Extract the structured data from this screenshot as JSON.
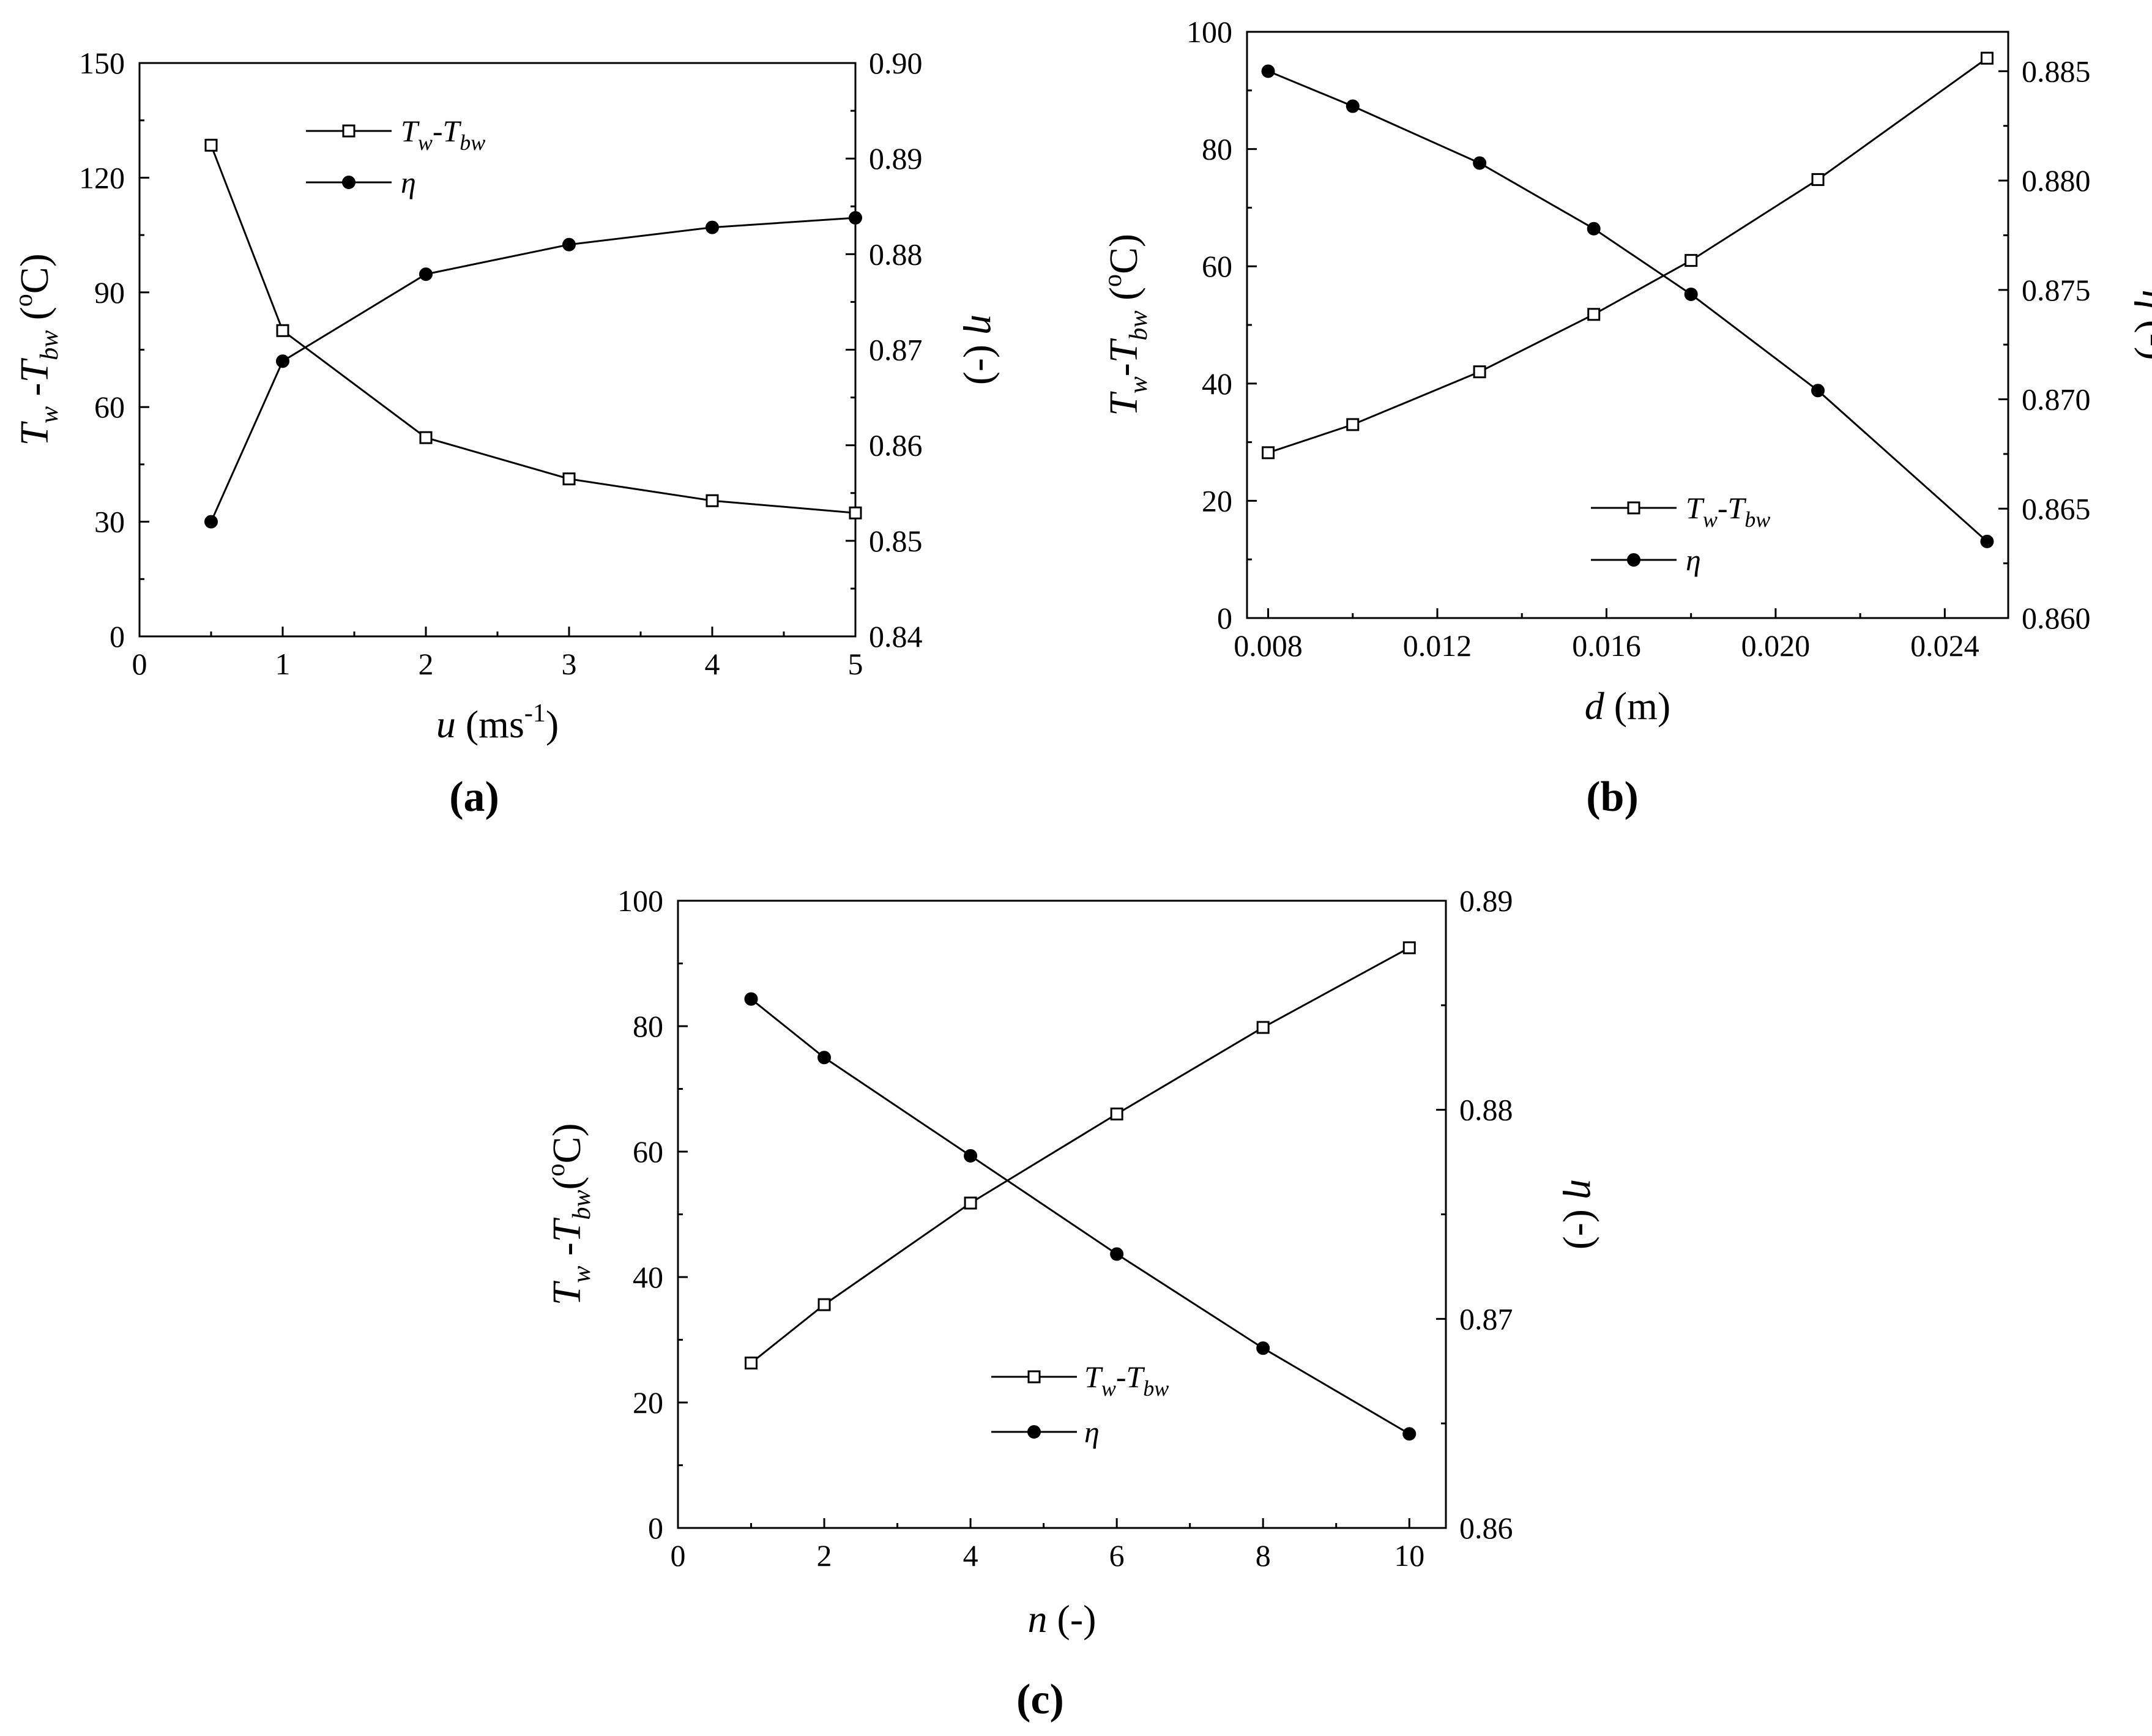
{
  "chart_data": [
    {
      "type": "line",
      "panel_label": "(a)",
      "x_var": "u",
      "x_unit": "(ms",
      "x_unit_sup": "-1",
      "x_unit_close": ")",
      "xlim": [
        0,
        5
      ],
      "xticks": [
        0,
        1,
        2,
        3,
        4,
        5
      ],
      "xtick_labels": [
        "0",
        "1",
        "2",
        "3",
        "4",
        "5"
      ],
      "ylim_left": [
        0,
        150
      ],
      "yticks_left": [
        0,
        30,
        60,
        90,
        120,
        150
      ],
      "ytick_labels_left": [
        "0",
        "30",
        "60",
        "90",
        "120",
        "150"
      ],
      "ylim_right": [
        0.84,
        0.9
      ],
      "yticks_right": [
        0.84,
        0.85,
        0.86,
        0.87,
        0.88,
        0.89,
        0.9
      ],
      "ytick_labels_right": [
        "0.84",
        "0.85",
        "0.86",
        "0.87",
        "0.88",
        "0.89",
        "0.90"
      ],
      "ylabel_left": {
        "T": "T",
        "w": "w",
        "dash": " -",
        "b": "T",
        "bw": "bw",
        "unit": " (",
        "deg": "o",
        "C": "C)"
      },
      "ylabel_right": {
        "eta": "η",
        "unit": " (-)"
      },
      "legend_position": "top-center",
      "series": [
        {
          "name": "T_w - T_bw",
          "label_parts": [
            "T",
            "w",
            "-T",
            "bw"
          ],
          "marker": "open-square",
          "axis": "left",
          "x": [
            0.5,
            1,
            2,
            3,
            4,
            5
          ],
          "values": [
            128.5,
            80,
            52,
            41.2,
            35.5,
            32.3
          ]
        },
        {
          "name": "η",
          "label_parts": [
            "η"
          ],
          "marker": "filled-circle",
          "axis": "right",
          "x": [
            0.5,
            1,
            2,
            3,
            4,
            5
          ],
          "values": [
            0.852,
            0.8688,
            0.8779,
            0.881,
            0.8828,
            0.8838
          ]
        }
      ]
    },
    {
      "type": "line",
      "panel_label": "(b)",
      "x_var": "d",
      "x_unit": "(m)",
      "x_unit_sup": "",
      "x_unit_close": "",
      "xlim": [
        0.0075,
        0.0255
      ],
      "xticks": [
        0.008,
        0.012,
        0.016,
        0.02,
        0.024
      ],
      "xtick_labels": [
        "0.008",
        "0.012",
        "0.016",
        "0.020",
        "0.024"
      ],
      "ylim_left": [
        0,
        100
      ],
      "yticks_left": [
        0,
        20,
        40,
        60,
        80,
        100
      ],
      "ytick_labels_left": [
        "0",
        "20",
        "40",
        "60",
        "80",
        "100"
      ],
      "ylim_right": [
        0.86,
        0.8868
      ],
      "yticks_right": [
        0.86,
        0.865,
        0.87,
        0.875,
        0.88,
        0.885
      ],
      "ytick_labels_right": [
        "0.860",
        "0.865",
        "0.870",
        "0.875",
        "0.880",
        "0.885"
      ],
      "ylabel_left": {
        "T": "T",
        "w": "w",
        "dash": "-",
        "b": "T",
        "bw": "bw",
        "unit": "  (",
        "deg": "o",
        "C": "C)"
      },
      "ylabel_right": {
        "eta": "η",
        "unit": " (-)"
      },
      "legend_position": "bottom-center",
      "series": [
        {
          "name": "T_w - T_bw",
          "label_parts": [
            "T",
            "w",
            "-T",
            "bw"
          ],
          "marker": "open-square",
          "axis": "left",
          "x": [
            0.008,
            0.01,
            0.013,
            0.0157,
            0.018,
            0.021,
            0.025
          ],
          "values": [
            28.2,
            33,
            42,
            51.8,
            61,
            74.8,
            95.5
          ]
        },
        {
          "name": "η",
          "label_parts": [
            "η"
          ],
          "marker": "filled-circle",
          "axis": "right",
          "x": [
            0.008,
            0.01,
            0.013,
            0.0157,
            0.018,
            0.021,
            0.025
          ],
          "values": [
            0.885,
            0.8834,
            0.8808,
            0.8778,
            0.8748,
            0.8704,
            0.8635
          ]
        }
      ]
    },
    {
      "type": "line",
      "panel_label": "(c)",
      "x_var": "n",
      "x_unit": "(-)",
      "x_unit_sup": "",
      "x_unit_close": "",
      "xlim": [
        0,
        10.5
      ],
      "xticks": [
        0,
        2,
        4,
        6,
        8,
        10
      ],
      "xtick_labels": [
        "0",
        "2",
        "4",
        "6",
        "8",
        "10"
      ],
      "ylim_left": [
        0,
        100
      ],
      "yticks_left": [
        0,
        20,
        40,
        60,
        80,
        100
      ],
      "ytick_labels_left": [
        "0",
        "20",
        "40",
        "60",
        "80",
        "100"
      ],
      "ylim_right": [
        0.86,
        0.89
      ],
      "yticks_right": [
        0.86,
        0.87,
        0.88,
        0.89
      ],
      "ytick_labels_right": [
        "0.86",
        "0.87",
        "0.88",
        "0.89"
      ],
      "ylabel_left": {
        "T": "T",
        "w": "w",
        "dash": " -",
        "b": "T",
        "bw": "bw",
        "unit": "(",
        "deg": "o",
        "C": "C)"
      },
      "ylabel_right": {
        "eta": "η",
        "unit": " (-)"
      },
      "legend_position": "bottom-center",
      "series": [
        {
          "name": "T_w - T_bw",
          "label_parts": [
            "T",
            "w",
            "-T",
            "bw"
          ],
          "marker": "open-square",
          "axis": "left",
          "x": [
            1,
            2,
            4,
            6,
            8,
            10
          ],
          "values": [
            26.3,
            35.6,
            51.8,
            66,
            79.8,
            92.5
          ]
        },
        {
          "name": "η",
          "label_parts": [
            "η"
          ],
          "marker": "filled-circle",
          "axis": "right",
          "x": [
            1,
            2,
            4,
            6,
            8,
            10
          ],
          "values": [
            0.8853,
            0.8825,
            0.8778,
            0.8731,
            0.8686,
            0.8645
          ]
        }
      ]
    }
  ]
}
